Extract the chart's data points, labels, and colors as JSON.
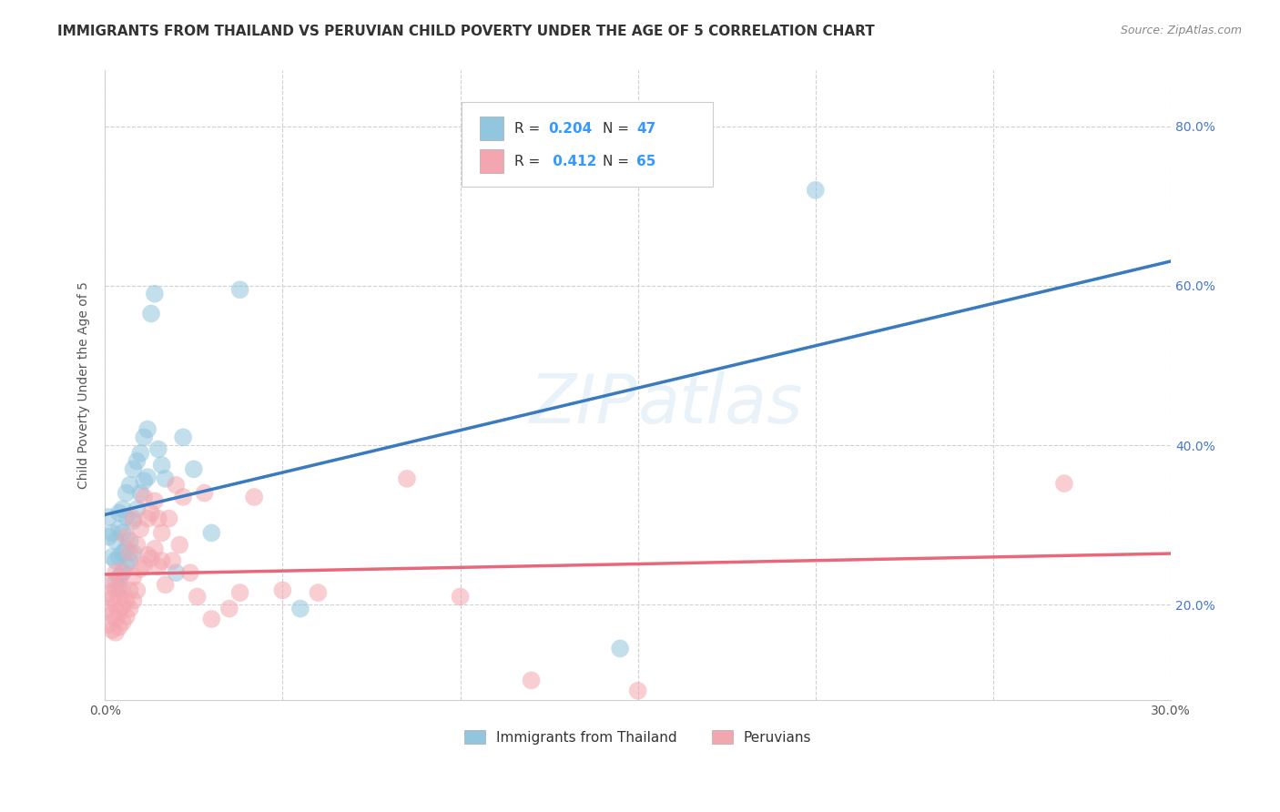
{
  "title": "IMMIGRANTS FROM THAILAND VS PERUVIAN CHILD POVERTY UNDER THE AGE OF 5 CORRELATION CHART",
  "source": "Source: ZipAtlas.com",
  "ylabel": "Child Poverty Under the Age of 5",
  "xmin": 0.0,
  "xmax": 0.3,
  "ymin": 0.08,
  "ymax": 0.87,
  "legend_bottom1": "Immigrants from Thailand",
  "legend_bottom2": "Peruvians",
  "color_blue": "#92c5de",
  "color_pink": "#f4a6b0",
  "color_blue_line": "#3a7abf",
  "color_pink_line": "#e8677a",
  "color_blue_dashed": "#aaccee",
  "watermark": "ZIPatlas",
  "blue_r": 0.204,
  "blue_n": 47,
  "pink_r": 0.412,
  "pink_n": 65,
  "blue_scatter_x": [
    0.001,
    0.001,
    0.002,
    0.002,
    0.003,
    0.003,
    0.003,
    0.004,
    0.004,
    0.004,
    0.004,
    0.004,
    0.005,
    0.005,
    0.005,
    0.005,
    0.006,
    0.006,
    0.006,
    0.006,
    0.007,
    0.007,
    0.007,
    0.008,
    0.008,
    0.008,
    0.009,
    0.009,
    0.01,
    0.01,
    0.011,
    0.011,
    0.012,
    0.012,
    0.013,
    0.014,
    0.015,
    0.016,
    0.017,
    0.02,
    0.022,
    0.025,
    0.03,
    0.038,
    0.055,
    0.145,
    0.2
  ],
  "blue_scatter_y": [
    0.285,
    0.31,
    0.26,
    0.29,
    0.23,
    0.255,
    0.28,
    0.22,
    0.235,
    0.26,
    0.295,
    0.315,
    0.24,
    0.265,
    0.29,
    0.32,
    0.25,
    0.27,
    0.31,
    0.34,
    0.255,
    0.28,
    0.35,
    0.265,
    0.305,
    0.37,
    0.32,
    0.38,
    0.34,
    0.39,
    0.355,
    0.41,
    0.36,
    0.42,
    0.565,
    0.59,
    0.395,
    0.375,
    0.358,
    0.24,
    0.41,
    0.37,
    0.29,
    0.595,
    0.195,
    0.145,
    0.72
  ],
  "pink_scatter_x": [
    0.001,
    0.001,
    0.001,
    0.002,
    0.002,
    0.002,
    0.002,
    0.003,
    0.003,
    0.003,
    0.003,
    0.003,
    0.004,
    0.004,
    0.004,
    0.004,
    0.005,
    0.005,
    0.005,
    0.005,
    0.006,
    0.006,
    0.006,
    0.007,
    0.007,
    0.007,
    0.008,
    0.008,
    0.008,
    0.009,
    0.009,
    0.01,
    0.01,
    0.011,
    0.011,
    0.012,
    0.012,
    0.013,
    0.013,
    0.014,
    0.014,
    0.015,
    0.015,
    0.016,
    0.016,
    0.017,
    0.018,
    0.019,
    0.02,
    0.021,
    0.022,
    0.024,
    0.026,
    0.028,
    0.03,
    0.035,
    0.038,
    0.042,
    0.05,
    0.06,
    0.085,
    0.1,
    0.12,
    0.15,
    0.27
  ],
  "pink_scatter_y": [
    0.175,
    0.195,
    0.215,
    0.168,
    0.188,
    0.208,
    0.228,
    0.165,
    0.182,
    0.2,
    0.218,
    0.24,
    0.172,
    0.19,
    0.21,
    0.23,
    0.178,
    0.198,
    0.218,
    0.242,
    0.185,
    0.205,
    0.285,
    0.195,
    0.218,
    0.265,
    0.205,
    0.235,
    0.308,
    0.218,
    0.275,
    0.245,
    0.295,
    0.25,
    0.335,
    0.262,
    0.308,
    0.258,
    0.315,
    0.27,
    0.33,
    0.248,
    0.308,
    0.255,
    0.29,
    0.225,
    0.308,
    0.255,
    0.35,
    0.275,
    0.335,
    0.24,
    0.21,
    0.34,
    0.182,
    0.195,
    0.215,
    0.335,
    0.218,
    0.215,
    0.358,
    0.21,
    0.105,
    0.092,
    0.352
  ],
  "ytick_vals": [
    0.2,
    0.4,
    0.6,
    0.8
  ],
  "xtick_vals": [
    0.0,
    0.05,
    0.1,
    0.15,
    0.2,
    0.25,
    0.3
  ],
  "xtick_labels": [
    "0.0%",
    "",
    "",
    "",
    "",
    "",
    "30.0%"
  ],
  "title_fontsize": 11,
  "axis_label_fontsize": 10,
  "tick_fontsize": 10
}
